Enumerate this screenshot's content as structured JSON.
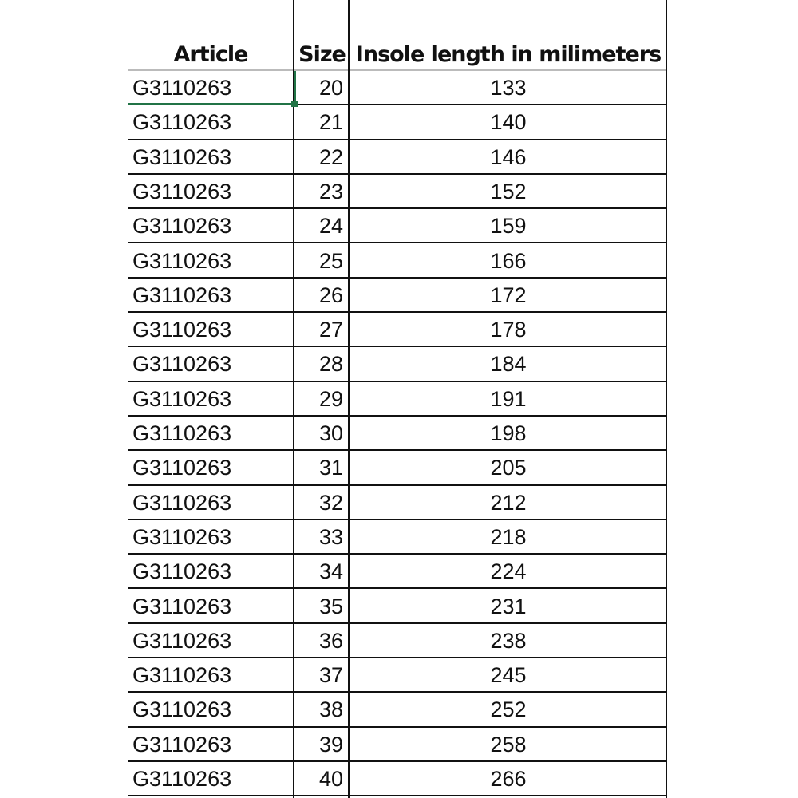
{
  "table": {
    "headers": [
      "Article",
      "Size",
      "Insole length in milimeters"
    ],
    "rows": [
      [
        "G3110263",
        "20",
        "133"
      ],
      [
        "G3110263",
        "21",
        "140"
      ],
      [
        "G3110263",
        "22",
        "146"
      ],
      [
        "G3110263",
        "23",
        "152"
      ],
      [
        "G3110263",
        "24",
        "159"
      ],
      [
        "G3110263",
        "25",
        "166"
      ],
      [
        "G3110263",
        "26",
        "172"
      ],
      [
        "G3110263",
        "27",
        "178"
      ],
      [
        "G3110263",
        "28",
        "184"
      ],
      [
        "G3110263",
        "29",
        "191"
      ],
      [
        "G3110263",
        "30",
        "198"
      ],
      [
        "G3110263",
        "31",
        "205"
      ],
      [
        "G3110263",
        "32",
        "212"
      ],
      [
        "G3110263",
        "33",
        "218"
      ],
      [
        "G3110263",
        "34",
        "224"
      ],
      [
        "G3110263",
        "35",
        "231"
      ],
      [
        "G3110263",
        "36",
        "238"
      ],
      [
        "G3110263",
        "37",
        "245"
      ],
      [
        "G3110263",
        "38",
        "252"
      ],
      [
        "G3110263",
        "39",
        "258"
      ],
      [
        "G3110263",
        "40",
        "266"
      ]
    ]
  },
  "colors": {
    "selection": "#217346",
    "grid": "#111111"
  }
}
